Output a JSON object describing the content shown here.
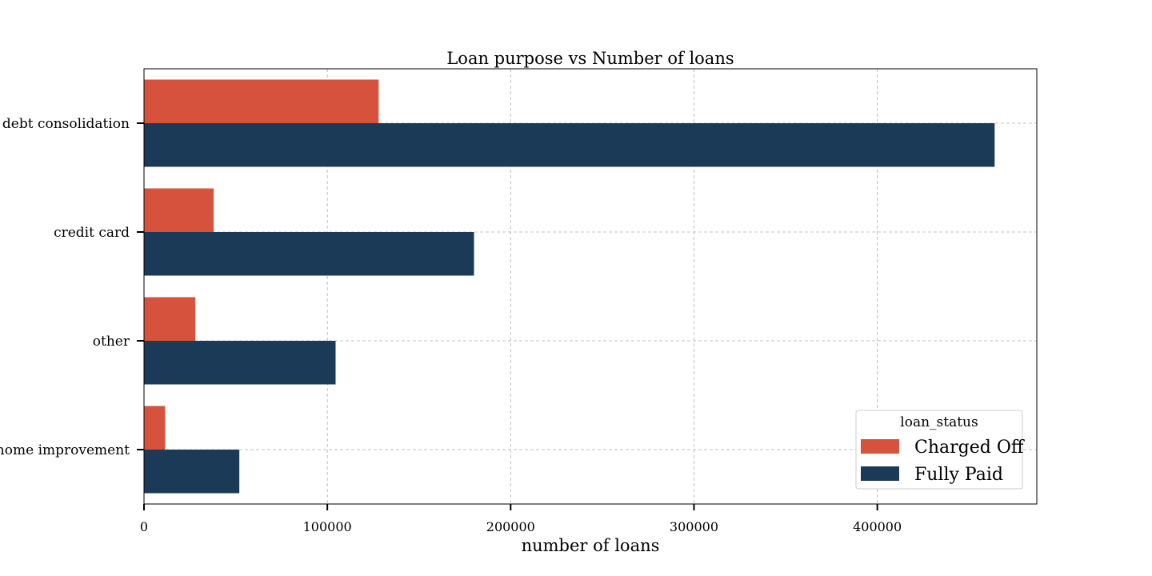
{
  "chart_data": {
    "type": "bar",
    "orientation": "horizontal",
    "title": "Loan purpose vs Number of loans",
    "xlabel": "number of loans",
    "ylabel": "",
    "categories": [
      "debt consolidation",
      "credit card",
      "other",
      "home improvement"
    ],
    "series": [
      {
        "name": "Charged Off",
        "color": "#d6523c",
        "values": [
          128000,
          38000,
          28000,
          11500
        ]
      },
      {
        "name": "Fully Paid",
        "color": "#1a3a57",
        "values": [
          464000,
          180000,
          104500,
          52000
        ]
      }
    ],
    "xlim": [
      0,
      487000
    ],
    "xticks": [
      0,
      100000,
      200000,
      300000,
      400000
    ],
    "grid": true,
    "legend": {
      "title": "loan_status",
      "position": "lower-right"
    }
  }
}
